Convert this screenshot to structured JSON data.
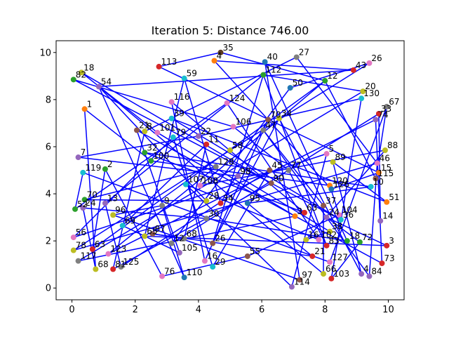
{
  "chart_data": {
    "type": "line",
    "title": "Iteration 5: Distance 746.00",
    "xlabel": "",
    "ylabel": "",
    "xlim": [
      -0.5,
      10.5
    ],
    "ylim": [
      -0.5,
      10.5
    ],
    "x_ticks": [
      0,
      2,
      4,
      6,
      8,
      10
    ],
    "y_ticks": [
      0,
      2,
      4,
      6,
      8,
      10
    ],
    "grid": false,
    "route_color": "#0000ff",
    "points": [
      {
        "label": "35",
        "x": 4.7,
        "y": 10.0,
        "color": "#5c3a21"
      },
      {
        "label": "4",
        "x": 4.5,
        "y": 9.65,
        "color": "#ff7f0e"
      },
      {
        "label": "40",
        "x": 6.1,
        "y": 9.6,
        "color": "#1f77b4"
      },
      {
        "label": "27",
        "x": 7.1,
        "y": 9.8,
        "color": "#7f7f7f"
      },
      {
        "label": "26",
        "x": 9.4,
        "y": 9.55,
        "color": "#e377c2"
      },
      {
        "label": "43",
        "x": 8.9,
        "y": 9.25,
        "color": "#d62728"
      },
      {
        "label": "18",
        "x": 0.3,
        "y": 9.15,
        "color": "#bcbd22"
      },
      {
        "label": "82",
        "x": 0.05,
        "y": 8.85,
        "color": "#2ca02c"
      },
      {
        "label": "113",
        "x": 2.75,
        "y": 9.4,
        "color": "#d62728"
      },
      {
        "label": "59",
        "x": 3.55,
        "y": 8.9,
        "color": "#17becf"
      },
      {
        "label": "112",
        "x": 6.05,
        "y": 9.05,
        "color": "#2ca02c"
      },
      {
        "label": "12",
        "x": 8.0,
        "y": 8.8,
        "color": "#2ca02c"
      },
      {
        "label": "54",
        "x": 0.85,
        "y": 8.55,
        "color": "#9467bd"
      },
      {
        "label": "50",
        "x": 6.9,
        "y": 8.5,
        "color": "#1f77b4"
      },
      {
        "label": "20",
        "x": 9.2,
        "y": 8.35,
        "color": "#bcbd22"
      },
      {
        "label": "130",
        "x": 9.15,
        "y": 8.05,
        "color": "#17becf"
      },
      {
        "label": "116",
        "x": 3.15,
        "y": 7.9,
        "color": "#e377c2"
      },
      {
        "label": "124",
        "x": 4.9,
        "y": 7.85,
        "color": "#e377c2"
      },
      {
        "label": "1",
        "x": 0.4,
        "y": 7.6,
        "color": "#ff7f0e"
      },
      {
        "label": "67",
        "x": 9.95,
        "y": 7.7,
        "color": "#7f7f7f"
      },
      {
        "label": "33",
        "x": 9.7,
        "y": 7.4,
        "color": "#d62728"
      },
      {
        "label": "74",
        "x": 9.6,
        "y": 7.15,
        "color": "#9467bd"
      },
      {
        "label": "39",
        "x": 3.15,
        "y": 7.2,
        "color": "#17becf"
      },
      {
        "label": "70",
        "x": 6.2,
        "y": 7.15,
        "color": "#8c564b"
      },
      {
        "label": "34",
        "x": 6.55,
        "y": 7.2,
        "color": "#bcbd22"
      },
      {
        "label": "106",
        "x": 5.1,
        "y": 6.85,
        "color": "#e377c2"
      },
      {
        "label": "47",
        "x": 6.05,
        "y": 6.7,
        "color": "#7f7f7f"
      },
      {
        "label": "21",
        "x": 2.05,
        "y": 6.7,
        "color": "#8c564b"
      },
      {
        "label": "8",
        "x": 2.3,
        "y": 6.65,
        "color": "#bcbd22"
      },
      {
        "label": "101",
        "x": 2.7,
        "y": 6.6,
        "color": "#e377c2"
      },
      {
        "label": "79",
        "x": 3.2,
        "y": 6.4,
        "color": "#17becf"
      },
      {
        "label": "22",
        "x": 4.0,
        "y": 6.45,
        "color": "#9467bd"
      },
      {
        "label": "11",
        "x": 4.25,
        "y": 6.1,
        "color": "#d62728"
      },
      {
        "label": "32",
        "x": 2.3,
        "y": 5.75,
        "color": "#2ca02c"
      },
      {
        "label": "58",
        "x": 5.0,
        "y": 5.85,
        "color": "#bcbd22"
      },
      {
        "label": "7",
        "x": 0.2,
        "y": 5.55,
        "color": "#9467bd"
      },
      {
        "label": "100",
        "x": 2.5,
        "y": 5.4,
        "color": "#2ca02c"
      },
      {
        "label": "5",
        "x": 8.05,
        "y": 5.7,
        "color": "#e377c2"
      },
      {
        "label": "89",
        "x": 8.25,
        "y": 5.35,
        "color": "#bcbd22"
      },
      {
        "label": "88",
        "x": 9.9,
        "y": 5.85,
        "color": "#bcbd22"
      },
      {
        "label": "46",
        "x": 9.65,
        "y": 5.3,
        "color": "#e377c2"
      },
      {
        "label": "2",
        "x": 1.05,
        "y": 5.05,
        "color": "#2ca02c"
      },
      {
        "label": "119",
        "x": 0.35,
        "y": 4.9,
        "color": "#17becf"
      },
      {
        "label": "128",
        "x": 4.55,
        "y": 5.15,
        "color": "#7f7f7f"
      },
      {
        "label": "98",
        "x": 5.25,
        "y": 4.75,
        "color": "#9467bd"
      },
      {
        "label": "45",
        "x": 6.25,
        "y": 5.0,
        "color": "#8c564b"
      },
      {
        "label": "77",
        "x": 6.85,
        "y": 5.0,
        "color": "#7f7f7f"
      },
      {
        "label": "15",
        "x": 9.7,
        "y": 4.9,
        "color": "#ff7f0e"
      },
      {
        "label": "115",
        "x": 9.6,
        "y": 4.65,
        "color": "#8c564b"
      },
      {
        "label": "10",
        "x": 9.45,
        "y": 4.3,
        "color": "#17becf"
      },
      {
        "label": "107",
        "x": 3.6,
        "y": 4.4,
        "color": "#17becf"
      },
      {
        "label": "108",
        "x": 4.05,
        "y": 4.35,
        "color": "#e377c2"
      },
      {
        "label": "90",
        "x": 6.3,
        "y": 4.45,
        "color": "#8c564b"
      },
      {
        "label": "120",
        "x": 8.15,
        "y": 4.35,
        "color": "#ff7f0e"
      },
      {
        "label": "126",
        "x": 8.2,
        "y": 4.2,
        "color": "#1f77b4"
      },
      {
        "label": "70",
        "x": 0.4,
        "y": 3.75,
        "color": "#2ca02c"
      },
      {
        "label": "28",
        "x": 4.25,
        "y": 3.7,
        "color": "#bcbd22"
      },
      {
        "label": "34",
        "x": 4.7,
        "y": 3.6,
        "color": "#d62728"
      },
      {
        "label": "95",
        "x": 5.55,
        "y": 3.6,
        "color": "#1f77b4"
      },
      {
        "label": "13",
        "x": 1.05,
        "y": 3.6,
        "color": "#9467bd"
      },
      {
        "label": "9",
        "x": 2.85,
        "y": 3.5,
        "color": "#7f7f7f"
      },
      {
        "label": "51",
        "x": 9.95,
        "y": 3.65,
        "color": "#ff7f0e"
      },
      {
        "label": "37",
        "x": 7.95,
        "y": 3.5,
        "color": "#8c564b"
      },
      {
        "label": "52",
        "x": 0.1,
        "y": 3.35,
        "color": "#2ca02c"
      },
      {
        "label": "24",
        "x": 0.35,
        "y": 3.4,
        "color": "#9467bd"
      },
      {
        "label": "96",
        "x": 1.3,
        "y": 3.1,
        "color": "#bcbd22"
      },
      {
        "label": "63",
        "x": 7.35,
        "y": 3.2,
        "color": "#d62728"
      },
      {
        "label": "104",
        "x": 8.45,
        "y": 3.1,
        "color": "#e377c2"
      },
      {
        "label": "3",
        "x": 7.05,
        "y": 3.05,
        "color": "#ff7f0e"
      },
      {
        "label": "24",
        "x": 8.05,
        "y": 3.0,
        "color": "#9467bd"
      },
      {
        "label": "36",
        "x": 8.5,
        "y": 2.9,
        "color": "#17becf"
      },
      {
        "label": "14",
        "x": 9.75,
        "y": 2.85,
        "color": "#9467bd"
      },
      {
        "label": "69",
        "x": 1.6,
        "y": 2.65,
        "color": "#17becf"
      },
      {
        "label": "30",
        "x": 4.25,
        "y": 2.95,
        "color": "#7f7f7f"
      },
      {
        "label": "38",
        "x": 8.15,
        "y": 2.4,
        "color": "#bcbd22"
      },
      {
        "label": "56",
        "x": 0.05,
        "y": 2.15,
        "color": "#e377c2"
      },
      {
        "label": "65",
        "x": 2.3,
        "y": 2.2,
        "color": "#bcbd22"
      },
      {
        "label": "87",
        "x": 2.55,
        "y": 2.3,
        "color": "#8c564b"
      },
      {
        "label": "68",
        "x": 3.55,
        "y": 2.1,
        "color": "#7f7f7f"
      },
      {
        "label": "16",
        "x": 7.4,
        "y": 2.05,
        "color": "#bcbd22"
      },
      {
        "label": "102",
        "x": 7.8,
        "y": 2.05,
        "color": "#e377c2"
      },
      {
        "label": "18",
        "x": 8.7,
        "y": 2.0,
        "color": "#2ca02c"
      },
      {
        "label": "72",
        "x": 9.1,
        "y": 1.95,
        "color": "#2ca02c"
      },
      {
        "label": "83",
        "x": 8.05,
        "y": 1.8,
        "color": "#d62728"
      },
      {
        "label": "3",
        "x": 9.95,
        "y": 1.8,
        "color": "#d62728"
      },
      {
        "label": "12",
        "x": 3.15,
        "y": 1.9,
        "color": "#7f7f7f"
      },
      {
        "label": "26",
        "x": 4.45,
        "y": 1.9,
        "color": "#8c564b"
      },
      {
        "label": "78",
        "x": 0.05,
        "y": 1.6,
        "color": "#bcbd22"
      },
      {
        "label": "63",
        "x": 0.65,
        "y": 1.65,
        "color": "#d62728"
      },
      {
        "label": "123",
        "x": 1.15,
        "y": 1.45,
        "color": "#e377c2"
      },
      {
        "label": "105",
        "x": 3.4,
        "y": 1.5,
        "color": "#9467bd"
      },
      {
        "label": "55",
        "x": 5.55,
        "y": 1.35,
        "color": "#8c564b"
      },
      {
        "label": "117",
        "x": 0.2,
        "y": 1.15,
        "color": "#7f7f7f"
      },
      {
        "label": "16",
        "x": 4.2,
        "y": 1.15,
        "color": "#e377c2"
      },
      {
        "label": "21",
        "x": 7.6,
        "y": 1.35,
        "color": "#d62728"
      },
      {
        "label": "127",
        "x": 8.15,
        "y": 1.1,
        "color": "#e377c2"
      },
      {
        "label": "73",
        "x": 9.8,
        "y": 1.05,
        "color": "#d62728"
      },
      {
        "label": "29",
        "x": 4.45,
        "y": 0.9,
        "color": "#17becf"
      },
      {
        "label": "68",
        "x": 0.75,
        "y": 0.8,
        "color": "#bcbd22"
      },
      {
        "label": "81",
        "x": 1.3,
        "y": 0.8,
        "color": "#d62728"
      },
      {
        "label": "125",
        "x": 1.55,
        "y": 0.9,
        "color": "#7f7f7f"
      },
      {
        "label": "76",
        "x": 2.85,
        "y": 0.5,
        "color": "#e377c2"
      },
      {
        "label": "110",
        "x": 3.55,
        "y": 0.45,
        "color": "#1f77b4"
      },
      {
        "label": "66",
        "x": 7.95,
        "y": 0.6,
        "color": "#bcbd22"
      },
      {
        "label": "4",
        "x": 9.15,
        "y": 0.6,
        "color": "#9467bd"
      },
      {
        "label": "84",
        "x": 9.4,
        "y": 0.5,
        "color": "#9467bd"
      },
      {
        "label": "103",
        "x": 8.2,
        "y": 0.4,
        "color": "#d62728"
      },
      {
        "label": "97",
        "x": 7.2,
        "y": 0.35,
        "color": "#8c564b"
      },
      {
        "label": "114",
        "x": 6.95,
        "y": 0.05,
        "color": "#9467bd"
      }
    ],
    "route": [
      0,
      8,
      47,
      54,
      1,
      5,
      12,
      103,
      62,
      26,
      105,
      40,
      87,
      34,
      4,
      13,
      85,
      20,
      71,
      40,
      3,
      28,
      99,
      52,
      6,
      29,
      68,
      92,
      14,
      10,
      86,
      24,
      104,
      38,
      61,
      22,
      70,
      7,
      25,
      46,
      83,
      10,
      59,
      100,
      45,
      97,
      30,
      75,
      37,
      108,
      50,
      80,
      17,
      63,
      42,
      95,
      19,
      48,
      11,
      88,
      41,
      101,
      91,
      67,
      53,
      36,
      18,
      98,
      64,
      73,
      81,
      2,
      107,
      65,
      60,
      102,
      12,
      56,
      55,
      43,
      89,
      21,
      96,
      27,
      90,
      72,
      32,
      78,
      77,
      94,
      58,
      49,
      33,
      66,
      16,
      93,
      23,
      57,
      9,
      76,
      84,
      69,
      82,
      106,
      15,
      31,
      35,
      44,
      74,
      79,
      39,
      51,
      11,
      0
    ]
  }
}
